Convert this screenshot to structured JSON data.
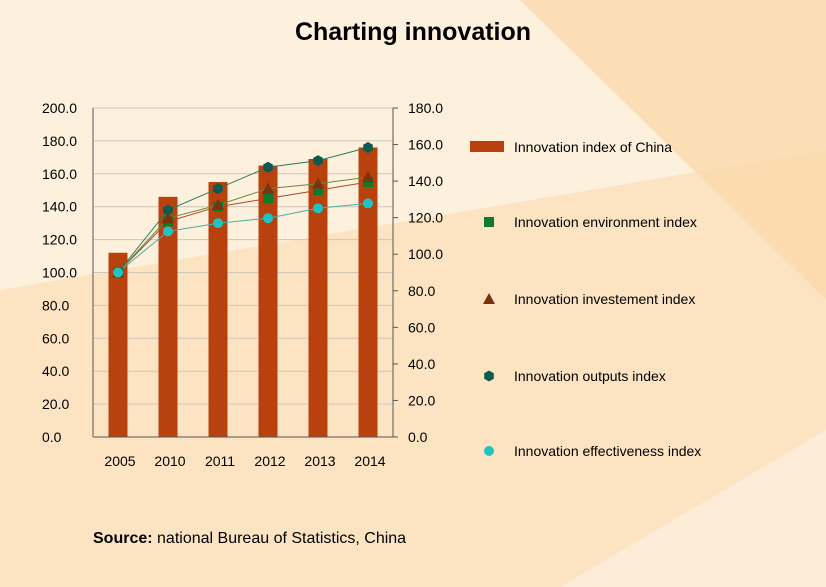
{
  "colors": {
    "bar": "#b8410e",
    "environment": "#0f7a2a",
    "investment": "#7a3310",
    "outputs": "#0e5a4e",
    "effectiveness": "#1fc4c0",
    "line_environment": "#b04a2a",
    "line_investment": "#6b8a3a",
    "line_outputs": "#2b7a5a",
    "line_effectiveness": "#4ab0a8"
  },
  "source": {
    "label": "Source:",
    "text": "national Bureau of Statistics, China"
  },
  "chart_data": {
    "type": "bar",
    "title": "Charting innovation",
    "categories": [
      "2005",
      "2010",
      "2011",
      "2012",
      "2013",
      "2014"
    ],
    "left_axis": {
      "range": [
        0,
        200
      ],
      "ticks": [
        "0.0",
        "20.0",
        "40.0",
        "60.0",
        "80.0",
        "100.0",
        "120.0",
        "140.0",
        "160.0",
        "180.0",
        "200.0"
      ]
    },
    "right_axis": {
      "range": [
        0,
        180
      ],
      "ticks": [
        "0.0",
        "20.0",
        "40.0",
        "60.0",
        "80.0",
        "100.0",
        "120.0",
        "140.0",
        "160.0",
        "180.0"
      ]
    },
    "grid": true,
    "legend_position": "right",
    "series": [
      {
        "name": "Innovation index of China",
        "type": "bar",
        "axis": "left",
        "marker": "bar",
        "values": [
          112,
          146,
          155,
          165,
          169,
          176
        ]
      },
      {
        "name": "Innovation environment index",
        "type": "line",
        "axis": "left",
        "marker": "square",
        "values": [
          100,
          131,
          140,
          145,
          150,
          155
        ]
      },
      {
        "name": "Innovation investement index",
        "type": "line",
        "axis": "left",
        "marker": "triangle",
        "values": [
          100,
          133,
          141,
          151,
          154,
          158
        ]
      },
      {
        "name": "Innovation outputs index",
        "type": "line",
        "axis": "left",
        "marker": "hexagon",
        "values": [
          100,
          138,
          151,
          164,
          168,
          176
        ]
      },
      {
        "name": "Innovation effectiveness index",
        "type": "line",
        "axis": "left",
        "marker": "circle",
        "values": [
          100,
          125,
          130,
          133,
          139,
          142
        ]
      }
    ]
  }
}
